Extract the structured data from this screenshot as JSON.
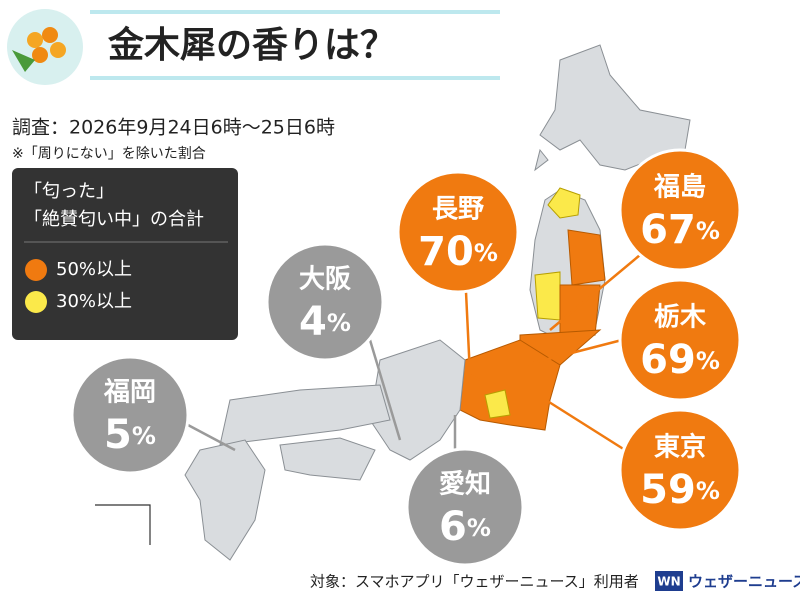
{
  "title": "金木犀の香りは？",
  "survey": "調査：2026年9月24日6時〜25日6時",
  "note": "※「周りにない」を除いた割合",
  "legend": {
    "title": [
      "「匂った」",
      "「絶賛匂い中」の合計"
    ],
    "items": [
      {
        "label": "50%以上",
        "color": "#f07a10"
      },
      {
        "label": "30%以上",
        "color": "#fbe94a"
      }
    ]
  },
  "bubbles": [
    {
      "name": "長野",
      "value": 70,
      "unit": "%",
      "color": "#f07a10"
    },
    {
      "name": "福島",
      "value": 67,
      "unit": "%",
      "color": "#f07a10"
    },
    {
      "name": "栃木",
      "value": 69,
      "unit": "%",
      "color": "#f07a10"
    },
    {
      "name": "東京",
      "value": 59,
      "unit": "%",
      "color": "#f07a10"
    },
    {
      "name": "大阪",
      "value": 4,
      "unit": "%",
      "color": "#9a9a9a"
    },
    {
      "name": "福岡",
      "value": 5,
      "unit": "%",
      "color": "#9a9a9a"
    },
    {
      "name": "愛知",
      "value": 6,
      "unit": "%",
      "color": "#9a9a9a"
    }
  ],
  "footer": "対象：スマホアプリ「ウェザーニュース」利用者",
  "logo": {
    "mark": "WN",
    "text": "ウェザーニュース"
  }
}
